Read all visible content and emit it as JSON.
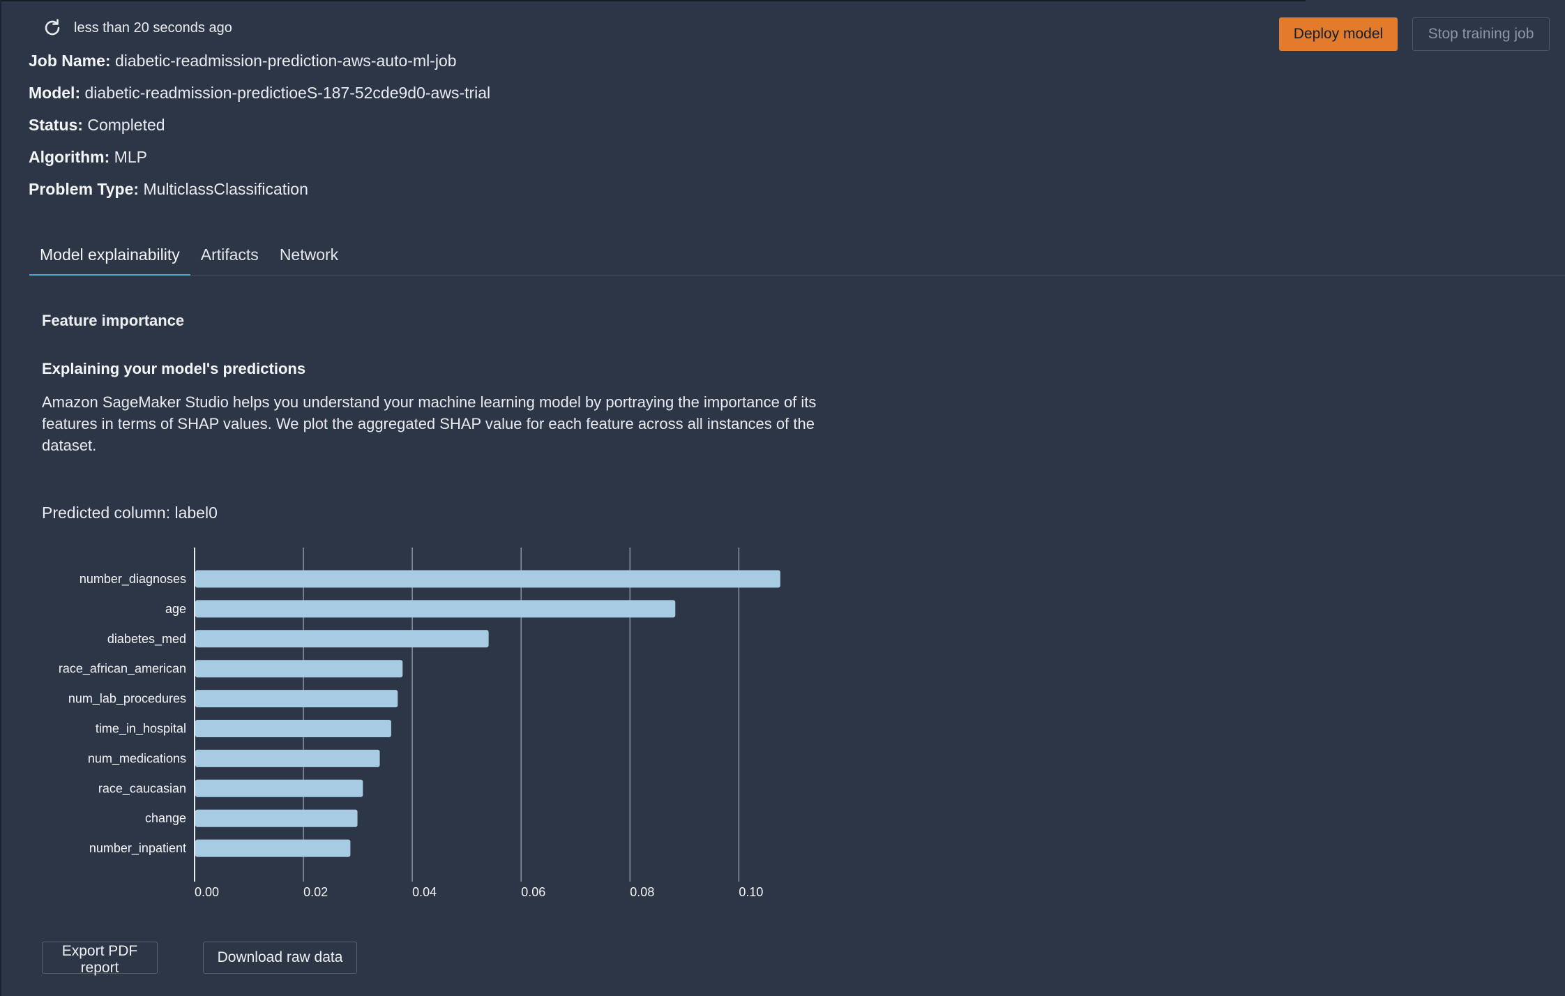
{
  "status_bar": {
    "refresh_icon": "refresh-icon",
    "last_updated": "less than 20 seconds ago"
  },
  "actions": {
    "deploy_label": "Deploy model",
    "stop_label": "Stop training job",
    "deploy_color": "#e37b2c"
  },
  "details": {
    "job_name_label": "Job Name:",
    "job_name_value": "diabetic-readmission-prediction-aws-auto-ml-job",
    "model_label": "Model:",
    "model_value": "diabetic-readmission-predictioeS-187-52cde9d0-aws-trial",
    "status_label": "Status:",
    "status_value": "Completed",
    "algorithm_label": "Algorithm:",
    "algorithm_value": "MLP",
    "problem_type_label": "Problem Type:",
    "problem_type_value": "MulticlassClassification"
  },
  "tabs": [
    {
      "label": "Model explainability",
      "active": true
    },
    {
      "label": "Artifacts",
      "active": false
    },
    {
      "label": "Network",
      "active": false
    }
  ],
  "feature_importance": {
    "section_title": "Feature importance",
    "explain_title": "Explaining your model's predictions",
    "explain_text": "Amazon SageMaker Studio helps you understand your machine learning model by portraying the importance of its features in terms of SHAP values. We plot the aggregated SHAP value for each feature across all instances of the dataset.",
    "predicted_column": "Predicted column: label0"
  },
  "chart_data": {
    "type": "bar",
    "orientation": "horizontal",
    "categories": [
      "number_diagnoses",
      "age",
      "diabetes_med",
      "race_african_american",
      "num_lab_procedures",
      "time_in_hospital",
      "num_medications",
      "race_caucasian",
      "change",
      "number_inpatient"
    ],
    "values": [
      0.1075,
      0.0882,
      0.0539,
      0.0381,
      0.0372,
      0.036,
      0.0339,
      0.0308,
      0.0298,
      0.0285
    ],
    "xlim": [
      0,
      0.107
    ],
    "xticks": [
      "0.00",
      "0.02",
      "0.04",
      "0.06",
      "0.08",
      "0.10"
    ],
    "grid": true,
    "bar_color": "#a8cbe4",
    "grid_color": "#8c939e"
  },
  "footer": {
    "export_label": "Export PDF report",
    "download_label": "Download raw data"
  }
}
